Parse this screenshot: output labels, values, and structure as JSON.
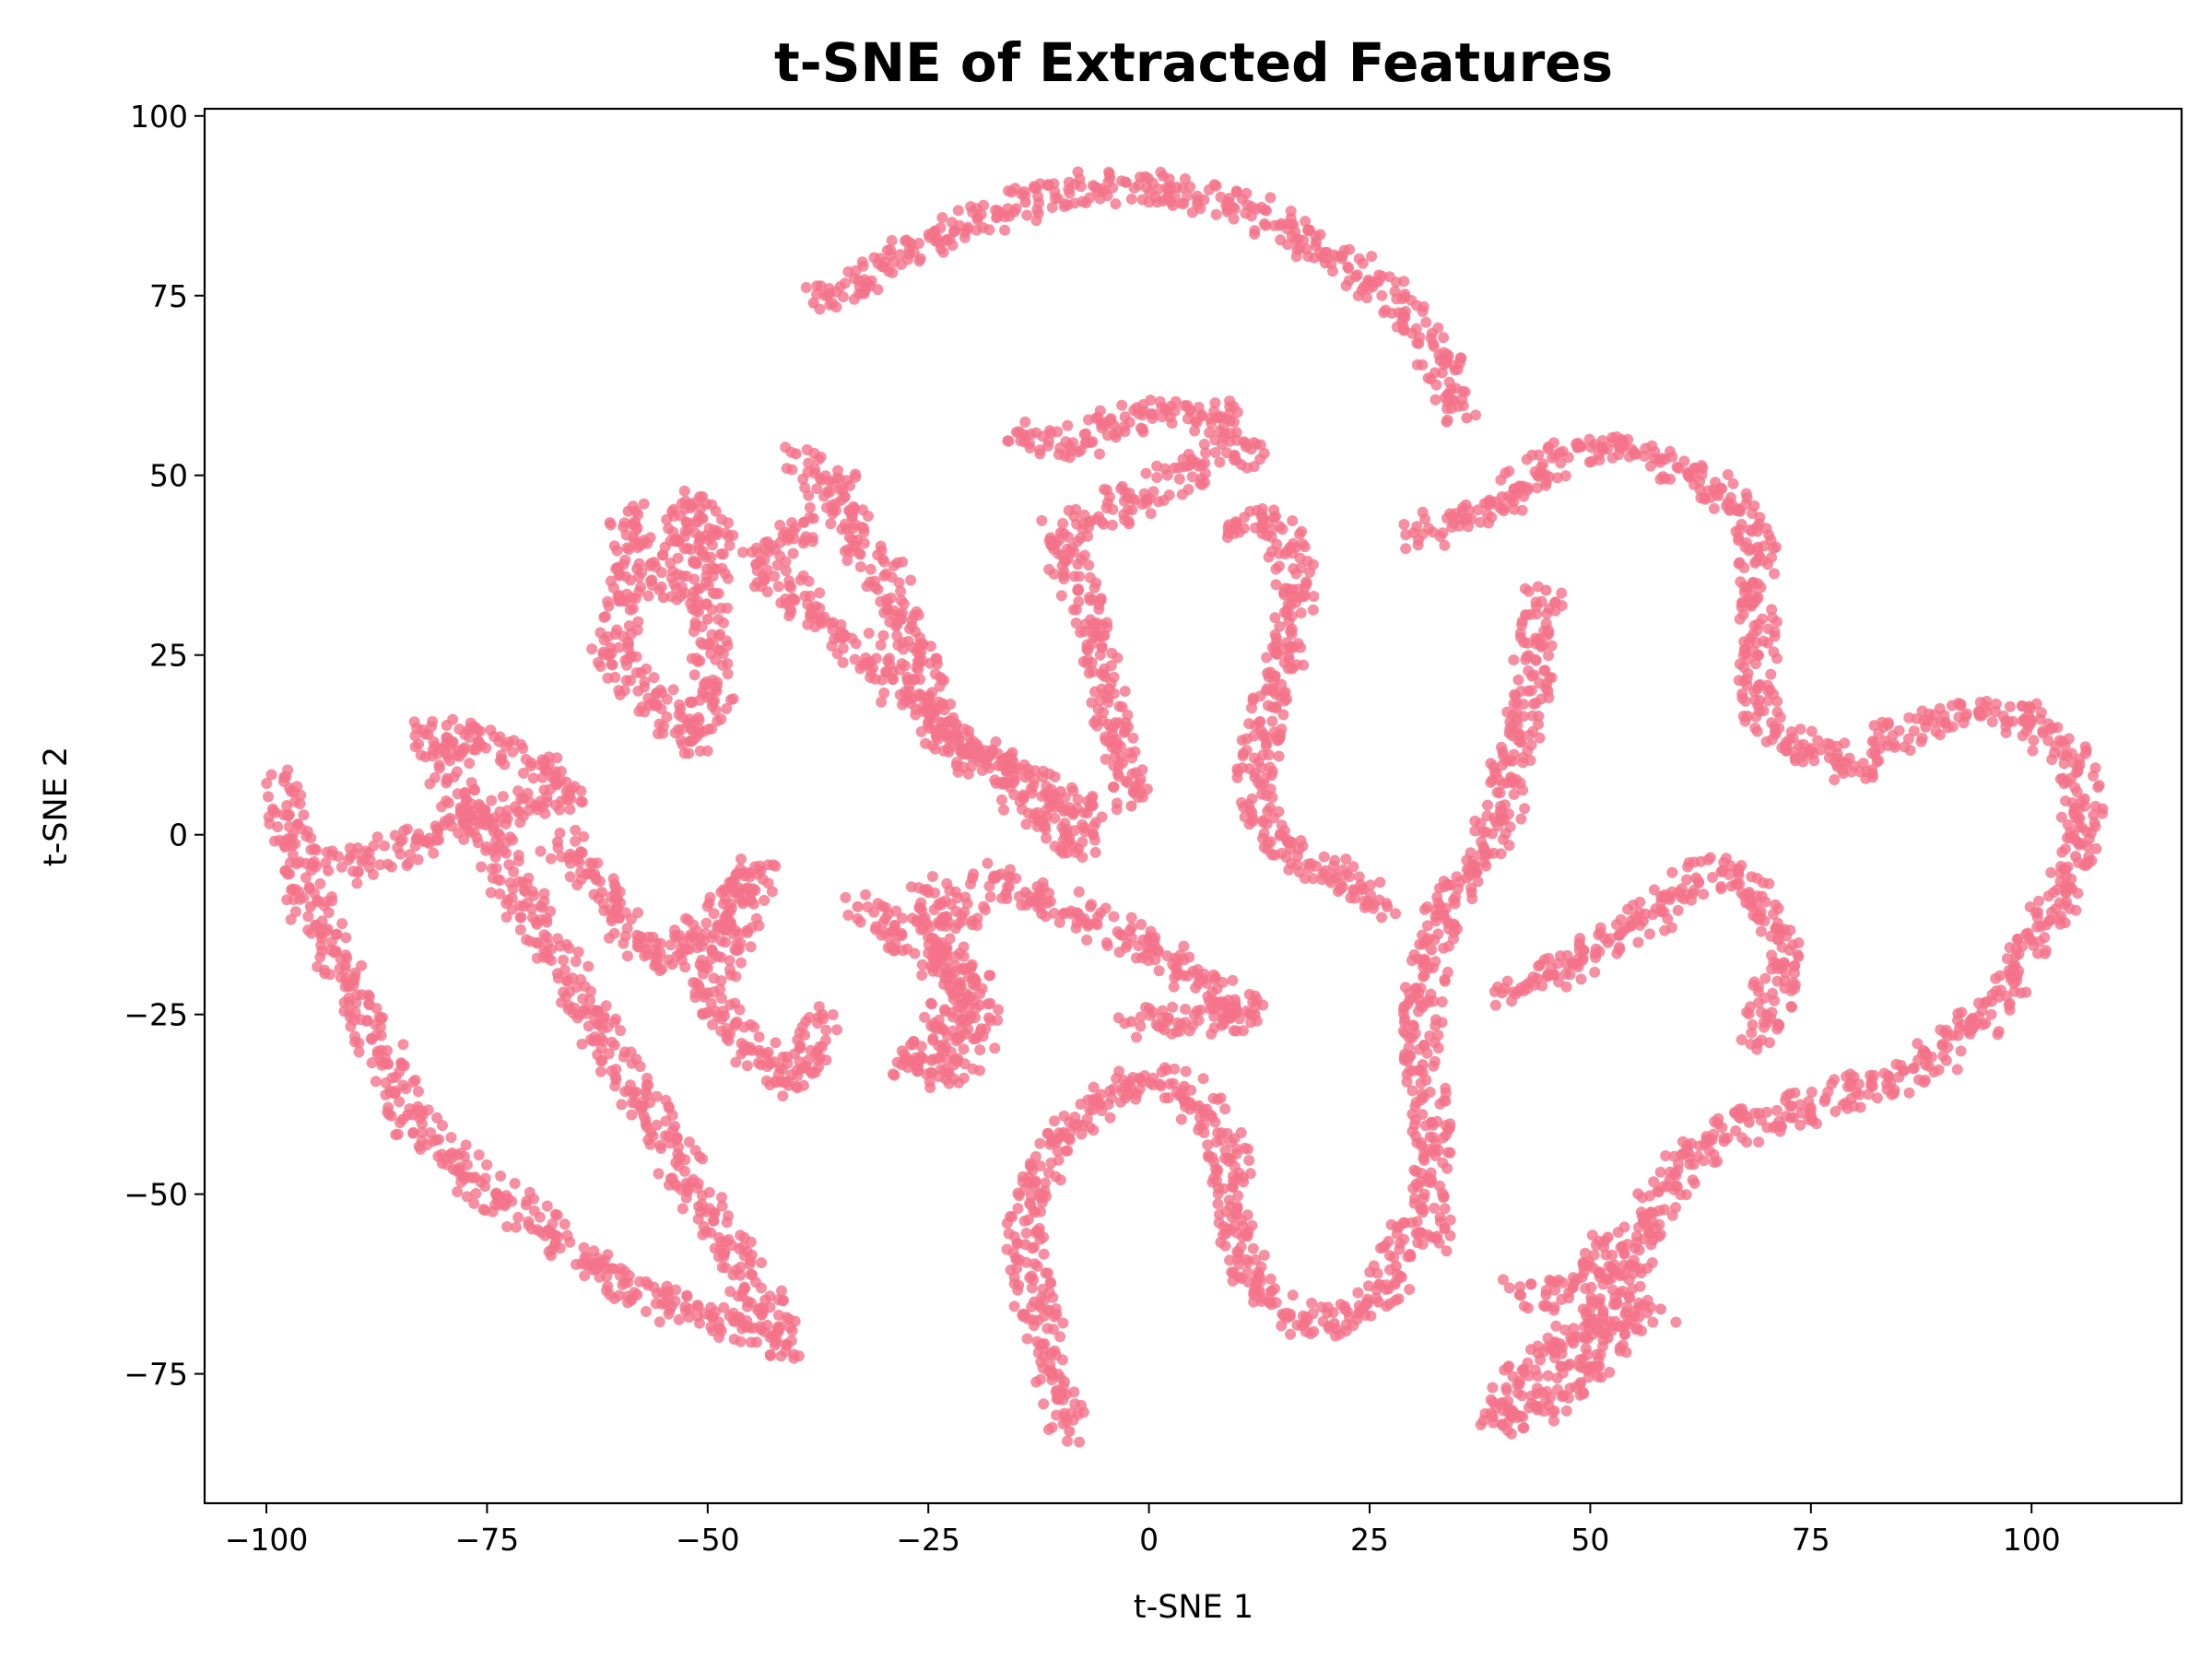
{
  "chart_data": {
    "type": "scatter",
    "title": "t-SNE of Extracted Features",
    "xlabel": "t-SNE 1",
    "ylabel": "t-SNE 2",
    "xlim": [
      -107,
      117
    ],
    "ylim": [
      -93,
      101
    ],
    "xticks": [
      -100,
      -75,
      -50,
      -25,
      0,
      25,
      50,
      75,
      100
    ],
    "yticks": [
      -75,
      -50,
      -25,
      0,
      25,
      50,
      75,
      100
    ],
    "grid": false,
    "marker_color": "#f4738a",
    "clusters": [
      {
        "points": [
          [
            -38,
            74
          ],
          [
            -30,
            79
          ],
          [
            -22,
            84
          ],
          [
            -14,
            88
          ],
          [
            -6,
            90
          ],
          [
            2,
            90
          ],
          [
            9,
            88
          ],
          [
            15,
            85
          ],
          [
            20,
            81
          ],
          [
            25,
            77
          ],
          [
            29,
            72
          ],
          [
            33,
            66
          ],
          [
            36,
            58
          ]
        ]
      },
      {
        "points": [
          [
            -98,
            8
          ],
          [
            -97,
            0
          ],
          [
            -95,
            -10
          ],
          [
            -91,
            -20
          ],
          [
            -87,
            -30
          ],
          [
            -84,
            -39
          ],
          [
            -79,
            -45
          ],
          [
            -74,
            -50
          ],
          [
            -68,
            -55
          ],
          [
            -63,
            -60
          ],
          [
            -58,
            -64
          ],
          [
            -52,
            -66
          ],
          [
            -46,
            -68
          ],
          [
            -41,
            -71
          ],
          [
            -82,
            14
          ],
          [
            -76,
            13
          ],
          [
            -70,
            10
          ],
          [
            -66,
            6
          ],
          [
            -93,
            -5
          ]
        ]
      },
      {
        "points": [
          [
            -67,
            -1
          ],
          [
            -62,
            -8
          ],
          [
            -58,
            -14
          ],
          [
            -54,
            -18
          ],
          [
            -48,
            -9
          ],
          [
            -44,
            -5
          ],
          [
            -50,
            -22
          ],
          [
            -45,
            -30
          ],
          [
            -40,
            -35
          ],
          [
            -37,
            -25
          ]
        ]
      },
      {
        "points": [
          [
            -33,
            -10
          ],
          [
            -28,
            -14
          ],
          [
            -24,
            -18
          ],
          [
            -20,
            -20
          ],
          [
            -24,
            -27
          ],
          [
            -28,
            -32
          ],
          [
            -23,
            -34
          ],
          [
            -19,
            -27
          ],
          [
            -25,
            -8
          ],
          [
            -20,
            -12
          ]
        ]
      },
      {
        "points": [
          [
            -59,
            45
          ],
          [
            -58,
            37
          ],
          [
            -61,
            26
          ],
          [
            -56,
            18
          ],
          [
            -52,
            13
          ],
          [
            -49,
            20
          ],
          [
            -50,
            30
          ],
          [
            -49,
            42
          ],
          [
            -52,
            46
          ],
          [
            -55,
            33
          ]
        ]
      },
      {
        "points": [
          [
            -40,
            53
          ],
          [
            -35,
            48
          ],
          [
            -33,
            41
          ],
          [
            -30,
            36
          ],
          [
            -28,
            30
          ],
          [
            -26,
            24
          ],
          [
            -25,
            18
          ],
          [
            -23,
            14
          ],
          [
            -18,
            11
          ],
          [
            -14,
            8
          ],
          [
            -10,
            6
          ],
          [
            -7,
            3
          ],
          [
            -8,
            -2
          ],
          [
            -44,
            38
          ],
          [
            -38,
            44
          ]
        ]
      },
      {
        "points": [
          [
            -15,
            56
          ],
          [
            -9,
            54
          ],
          [
            -4,
            57
          ],
          [
            2,
            59
          ],
          [
            8,
            58
          ],
          [
            11,
            54
          ],
          [
            -10,
            42
          ],
          [
            -8,
            34
          ],
          [
            -6,
            28
          ],
          [
            -5,
            22
          ],
          [
            -4,
            15
          ],
          [
            -3,
            10
          ],
          [
            -2,
            4
          ]
        ]
      },
      {
        "points": [
          [
            9,
            42
          ],
          [
            13,
            44
          ],
          [
            16,
            40
          ],
          [
            17,
            33
          ],
          [
            16,
            26
          ],
          [
            14,
            20
          ],
          [
            13,
            14
          ],
          [
            12,
            8
          ],
          [
            13,
            2
          ],
          [
            16,
            -2
          ],
          [
            20,
            -5
          ],
          [
            24,
            -7
          ],
          [
            27,
            -10
          ]
        ]
      },
      {
        "points": [
          [
            -20,
            -6
          ],
          [
            -14,
            -8
          ],
          [
            -8,
            -11
          ],
          [
            -3,
            -14
          ],
          [
            1,
            -16
          ],
          [
            5,
            -19
          ],
          [
            9,
            -23
          ],
          [
            12,
            -25
          ],
          [
            2,
            -26
          ],
          [
            -2,
            -26
          ]
        ]
      },
      {
        "points": [
          [
            -9,
            -83
          ],
          [
            -11,
            -75
          ],
          [
            -13,
            -65
          ],
          [
            -14,
            -57
          ],
          [
            -13,
            -49
          ],
          [
            -10,
            -42
          ],
          [
            -6,
            -37
          ],
          [
            -1,
            -34
          ],
          [
            4,
            -35
          ],
          [
            7,
            -39
          ],
          [
            9,
            -45
          ],
          [
            10,
            -52
          ],
          [
            10,
            -58
          ],
          [
            12,
            -63
          ],
          [
            16,
            -67
          ],
          [
            21,
            -68
          ],
          [
            26,
            -65
          ],
          [
            28,
            -60
          ],
          [
            29,
            -54
          ]
        ]
      },
      {
        "points": [
          [
            32,
            -56
          ],
          [
            32,
            -48
          ],
          [
            32,
            -40
          ],
          [
            31,
            -32
          ],
          [
            31,
            -24
          ],
          [
            32,
            -16
          ],
          [
            33,
            -10
          ],
          [
            36,
            -6
          ],
          [
            38,
            -2
          ],
          [
            40,
            2
          ],
          [
            41,
            8
          ],
          [
            42,
            14
          ],
          [
            43,
            20
          ],
          [
            44,
            27
          ],
          [
            45,
            34
          ]
        ]
      },
      {
        "points": [
          [
            40,
            -22
          ],
          [
            44,
            -20
          ],
          [
            48,
            -18
          ],
          [
            52,
            -15
          ],
          [
            56,
            -12
          ],
          [
            59,
            -9
          ],
          [
            62,
            -6
          ],
          [
            65,
            -5
          ],
          [
            68,
            -8
          ],
          [
            71,
            -13
          ],
          [
            72,
            -18
          ],
          [
            70,
            -25
          ],
          [
            69,
            -29
          ]
        ]
      },
      {
        "points": [
          [
            30,
            42
          ],
          [
            36,
            44
          ],
          [
            40,
            47
          ],
          [
            44,
            50
          ],
          [
            49,
            54
          ],
          [
            55,
            53
          ],
          [
            60,
            51
          ],
          [
            64,
            48
          ],
          [
            67,
            45
          ],
          [
            69,
            40
          ],
          [
            69,
            33
          ],
          [
            69,
            25
          ],
          [
            69,
            18
          ],
          [
            71,
            14
          ],
          [
            75,
            12
          ],
          [
            79,
            10
          ],
          [
            82,
            8
          ]
        ]
      },
      {
        "points": [
          [
            82,
            13
          ],
          [
            88,
            15
          ],
          [
            94,
            17
          ],
          [
            100,
            16
          ],
          [
            104,
            11
          ],
          [
            106,
            5
          ],
          [
            105,
            -3
          ],
          [
            102,
            -12
          ],
          [
            98,
            -20
          ],
          [
            93,
            -27
          ],
          [
            88,
            -32
          ],
          [
            82,
            -35
          ],
          [
            75,
            -38
          ],
          [
            68,
            -40
          ],
          [
            63,
            -43
          ],
          [
            59,
            -48
          ],
          [
            56,
            -54
          ],
          [
            55,
            -60
          ],
          [
            53,
            -65
          ],
          [
            50,
            -68
          ],
          [
            46,
            -72
          ],
          [
            42,
            -76
          ],
          [
            39,
            -81
          ]
        ]
      },
      {
        "points": [
          [
            40,
            -82
          ],
          [
            44,
            -80
          ],
          [
            47,
            -78
          ],
          [
            50,
            -74
          ],
          [
            52,
            -70
          ],
          [
            55,
            -67
          ],
          [
            58,
            -66
          ]
        ]
      },
      {
        "points": [
          [
            42,
            -64
          ],
          [
            45,
            -64
          ],
          [
            48,
            -63
          ],
          [
            51,
            -61
          ],
          [
            52,
            -56
          ]
        ]
      }
    ]
  }
}
